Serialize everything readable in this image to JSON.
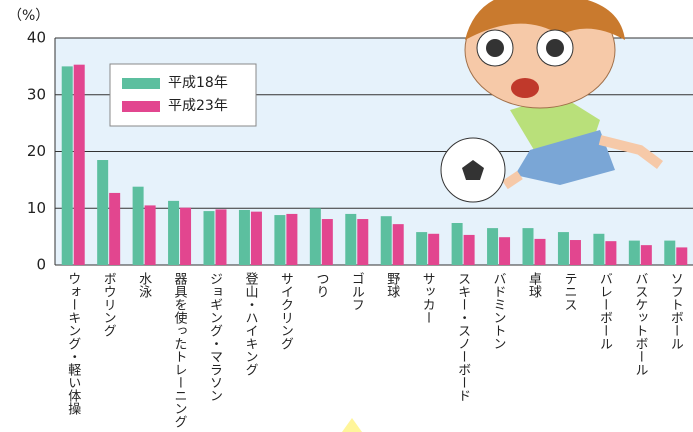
{
  "chart_data": {
    "type": "bar",
    "y_label": "（%）",
    "categories": [
      "ウォーキング・軽い体操",
      "ボウリング",
      "水泳",
      "器具を使ったトレーニング",
      "ジョギング・マラソン",
      "登山・ハイキング",
      "サイクリング",
      "つり",
      "ゴルフ",
      "野球",
      "サッカー",
      "スキー・スノーボード",
      "バドミントン",
      "卓球",
      "テニス",
      "バレーボール",
      "バスケットボール",
      "ソフトボール"
    ],
    "series": [
      {
        "name": "平成18年",
        "color": "#5cbf9f",
        "values": [
          35.0,
          18.5,
          13.8,
          11.3,
          9.5,
          9.7,
          8.8,
          10.0,
          9.0,
          8.6,
          5.8,
          7.4,
          6.5,
          6.5,
          5.8,
          5.5,
          4.3,
          4.3
        ]
      },
      {
        "name": "平成23年",
        "color": "#e2468f",
        "values": [
          35.3,
          12.7,
          10.5,
          10.1,
          9.8,
          9.4,
          9.0,
          8.1,
          8.1,
          7.2,
          5.5,
          5.3,
          4.9,
          4.6,
          4.4,
          4.2,
          3.5,
          3.1
        ]
      }
    ],
    "ylim": [
      0,
      40
    ],
    "yticks": [
      0,
      10,
      20,
      30,
      40
    ],
    "grid": true
  }
}
